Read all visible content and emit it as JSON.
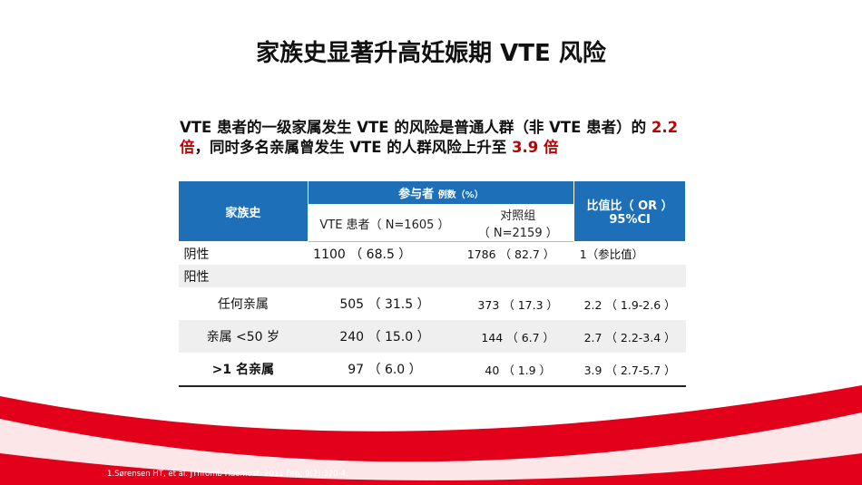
{
  "title": "家族史显著升高妊娠期 VTE 风险",
  "subtitle": {
    "part1": "VTE 患者的一级家属发生 VTE 的风险是普通人群（非 VTE 患者）的 ",
    "highlight1": "2.2 倍",
    "part2": "，同时多名亲属曾发生 VTE 的人群风险上升至 ",
    "highlight2": "3.9 倍",
    "highlight_color": "#c00000"
  },
  "table": {
    "header": {
      "group": "家族史",
      "participants": "参与者",
      "participants_unit": "例数（%）",
      "vte": "VTE 患者（ N=1605 ）",
      "control_line1": "对照组",
      "control_line2": "（ N=2159 ）",
      "or_line1": "比值比（ OR ）",
      "or_line2": "95%CI"
    },
    "rows": [
      [
        "阴性",
        "1100 （ 68.5 ）",
        "1786 （ 82.7 ）",
        "1（参比值）"
      ],
      [
        "阳性"
      ],
      [
        "任何亲属",
        "505 （ 31.5 ）",
        "373 （ 17.3 ）",
        "2.2 （ 1.9-2.6 ）"
      ],
      [
        "亲属 <50 岁",
        "240 （ 15.0 ）",
        "144 （ 6.7 ）",
        "2.7 （ 2.2-3.4 ）"
      ],
      [
        ">1 名亲属",
        "97 （ 6.0 ）",
        "40 （ 1.9 ）",
        "3.9 （ 2.7-5.7 ）"
      ]
    ]
  },
  "footnote": "1.Sørensen HT, et al. JThromb Haemost. 2011 Feb; 9(2):320-4."
}
